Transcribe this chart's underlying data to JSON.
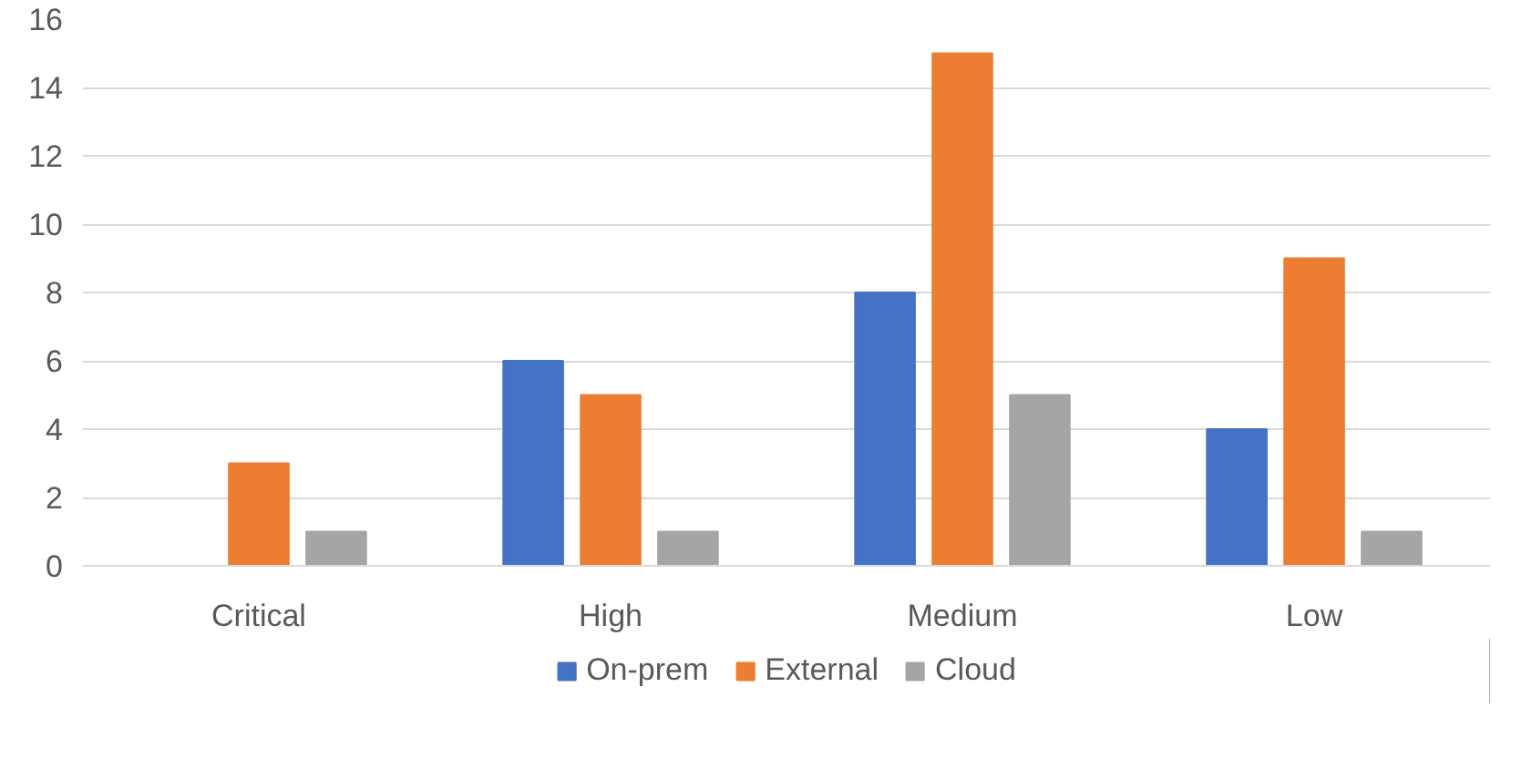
{
  "chart_data": {
    "type": "bar",
    "categories": [
      "Critical",
      "High",
      "Medium",
      "Low"
    ],
    "series": [
      {
        "name": "On-prem",
        "color": "#4472c4",
        "values": [
          0,
          6,
          8,
          4
        ]
      },
      {
        "name": "External",
        "color": "#ed7d31",
        "values": [
          3,
          5,
          15,
          9
        ]
      },
      {
        "name": "Cloud",
        "color": "#a5a5a5",
        "values": [
          1,
          1,
          5,
          1
        ]
      }
    ],
    "ylim": [
      0,
      16
    ],
    "yticks": [
      0,
      2,
      4,
      6,
      8,
      10,
      12,
      14,
      16
    ],
    "grid": "y",
    "legend": "bottom"
  }
}
